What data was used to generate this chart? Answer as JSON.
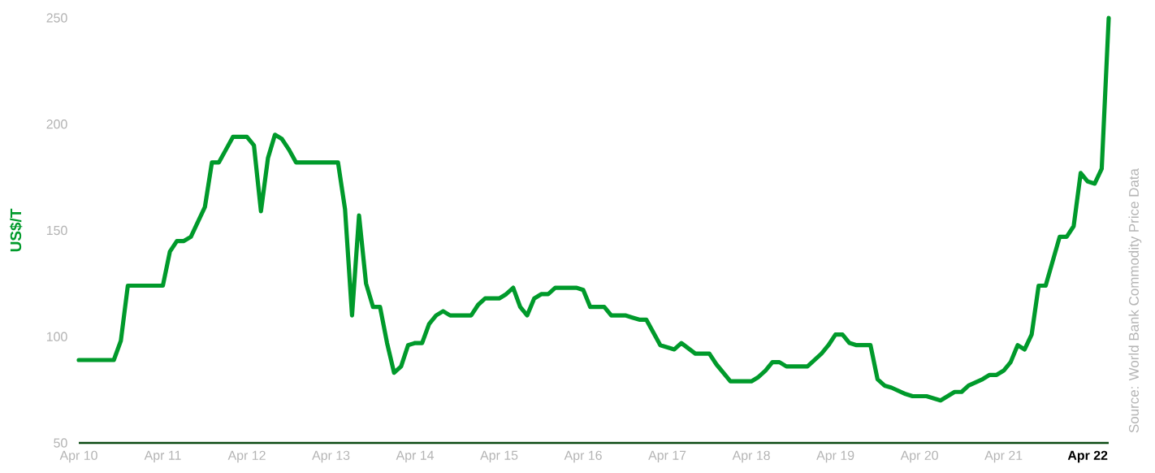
{
  "chart_data": {
    "type": "line",
    "ylabel": "US$/T",
    "annotations": [
      "Source: World Bank Commodity Price Data"
    ],
    "x": [
      "2010-04",
      "2010-09",
      "2010-10",
      "2010-11",
      "2011-04",
      "2011-05",
      "2011-06",
      "2011-07",
      "2011-08",
      "2011-09",
      "2011-10",
      "2011-11",
      "2011-12",
      "2012-01",
      "2012-02",
      "2012-04",
      "2012-05",
      "2012-06",
      "2012-07",
      "2012-08",
      "2012-09",
      "2012-10",
      "2012-11",
      "2013-05",
      "2013-06",
      "2013-07",
      "2013-08",
      "2013-09",
      "2013-10",
      "2013-11",
      "2013-12",
      "2014-01",
      "2014-02",
      "2014-03",
      "2014-04",
      "2014-05",
      "2014-06",
      "2014-07",
      "2014-08",
      "2014-09",
      "2014-12",
      "2015-01",
      "2015-02",
      "2015-04",
      "2015-05",
      "2015-06",
      "2015-07",
      "2015-08",
      "2015-09",
      "2015-10",
      "2015-11",
      "2015-12",
      "2016-03",
      "2016-04",
      "2016-05",
      "2016-07",
      "2016-08",
      "2016-10",
      "2016-11",
      "2016-12",
      "2017-01",
      "2017-02",
      "2017-03",
      "2017-05",
      "2017-06",
      "2017-08",
      "2017-10",
      "2017-11",
      "2018-01",
      "2018-04",
      "2018-05",
      "2018-06",
      "2018-07",
      "2018-08",
      "2018-09",
      "2018-12",
      "2019-01",
      "2019-02",
      "2019-03",
      "2019-04",
      "2019-05",
      "2019-06",
      "2019-07",
      "2019-09",
      "2019-10",
      "2019-11",
      "2019-12",
      "2020-02",
      "2020-03",
      "2020-05",
      "2020-07",
      "2020-09",
      "2020-10",
      "2020-11",
      "2021-01",
      "2021-02",
      "2021-03",
      "2021-04",
      "2021-05",
      "2021-06",
      "2021-07",
      "2021-08",
      "2021-09",
      "2021-10",
      "2021-12",
      "2022-01",
      "2022-02",
      "2022-03",
      "2022-04",
      "2022-05",
      "2022-06",
      "2022-07"
    ],
    "values": [
      89,
      89,
      98,
      124,
      124,
      140,
      145,
      145,
      147,
      154,
      161,
      182,
      182,
      188,
      194,
      194,
      190,
      159,
      184,
      195,
      193,
      188,
      182,
      182,
      160,
      110,
      157,
      125,
      114,
      114,
      97,
      83,
      86,
      96,
      97,
      97,
      106,
      110,
      112,
      110,
      110,
      115,
      118,
      118,
      120,
      123,
      114,
      110,
      118,
      120,
      120,
      123,
      123,
      122,
      114,
      114,
      110,
      110,
      109,
      108,
      108,
      102,
      96,
      94,
      97,
      92,
      92,
      87,
      79,
      79,
      81,
      84,
      88,
      88,
      86,
      86,
      89,
      92,
      96,
      101,
      101,
      97,
      96,
      96,
      80,
      77,
      76,
      73,
      72,
      72,
      70,
      74,
      74,
      77,
      80,
      82,
      82,
      84,
      88,
      96,
      94,
      101,
      124,
      124,
      147,
      147,
      152,
      177,
      173,
      172,
      179,
      250
    ],
    "color": "#009a2b",
    "xlim": [
      "2010-04",
      "2022-07"
    ],
    "xticks": [
      {
        "value": "2010-04",
        "label": "Apr 10"
      },
      {
        "value": "2011-04",
        "label": "Apr 11"
      },
      {
        "value": "2012-04",
        "label": "Apr 12"
      },
      {
        "value": "2013-04",
        "label": "Apr 13"
      },
      {
        "value": "2014-04",
        "label": "Apr 14"
      },
      {
        "value": "2015-04",
        "label": "Apr 15"
      },
      {
        "value": "2016-04",
        "label": "Apr 16"
      },
      {
        "value": "2017-04",
        "label": "Apr 17"
      },
      {
        "value": "2018-04",
        "label": "Apr 18"
      },
      {
        "value": "2019-04",
        "label": "Apr 19"
      },
      {
        "value": "2020-04",
        "label": "Apr 20"
      },
      {
        "value": "2021-04",
        "label": "Apr 21"
      },
      {
        "value": "2022-04",
        "label": "Apr 22"
      }
    ],
    "ylim": [
      50,
      250
    ],
    "yticks": [
      50,
      100,
      150,
      200,
      250
    ],
    "grid": false,
    "marker": "none",
    "line_style": "solid"
  }
}
